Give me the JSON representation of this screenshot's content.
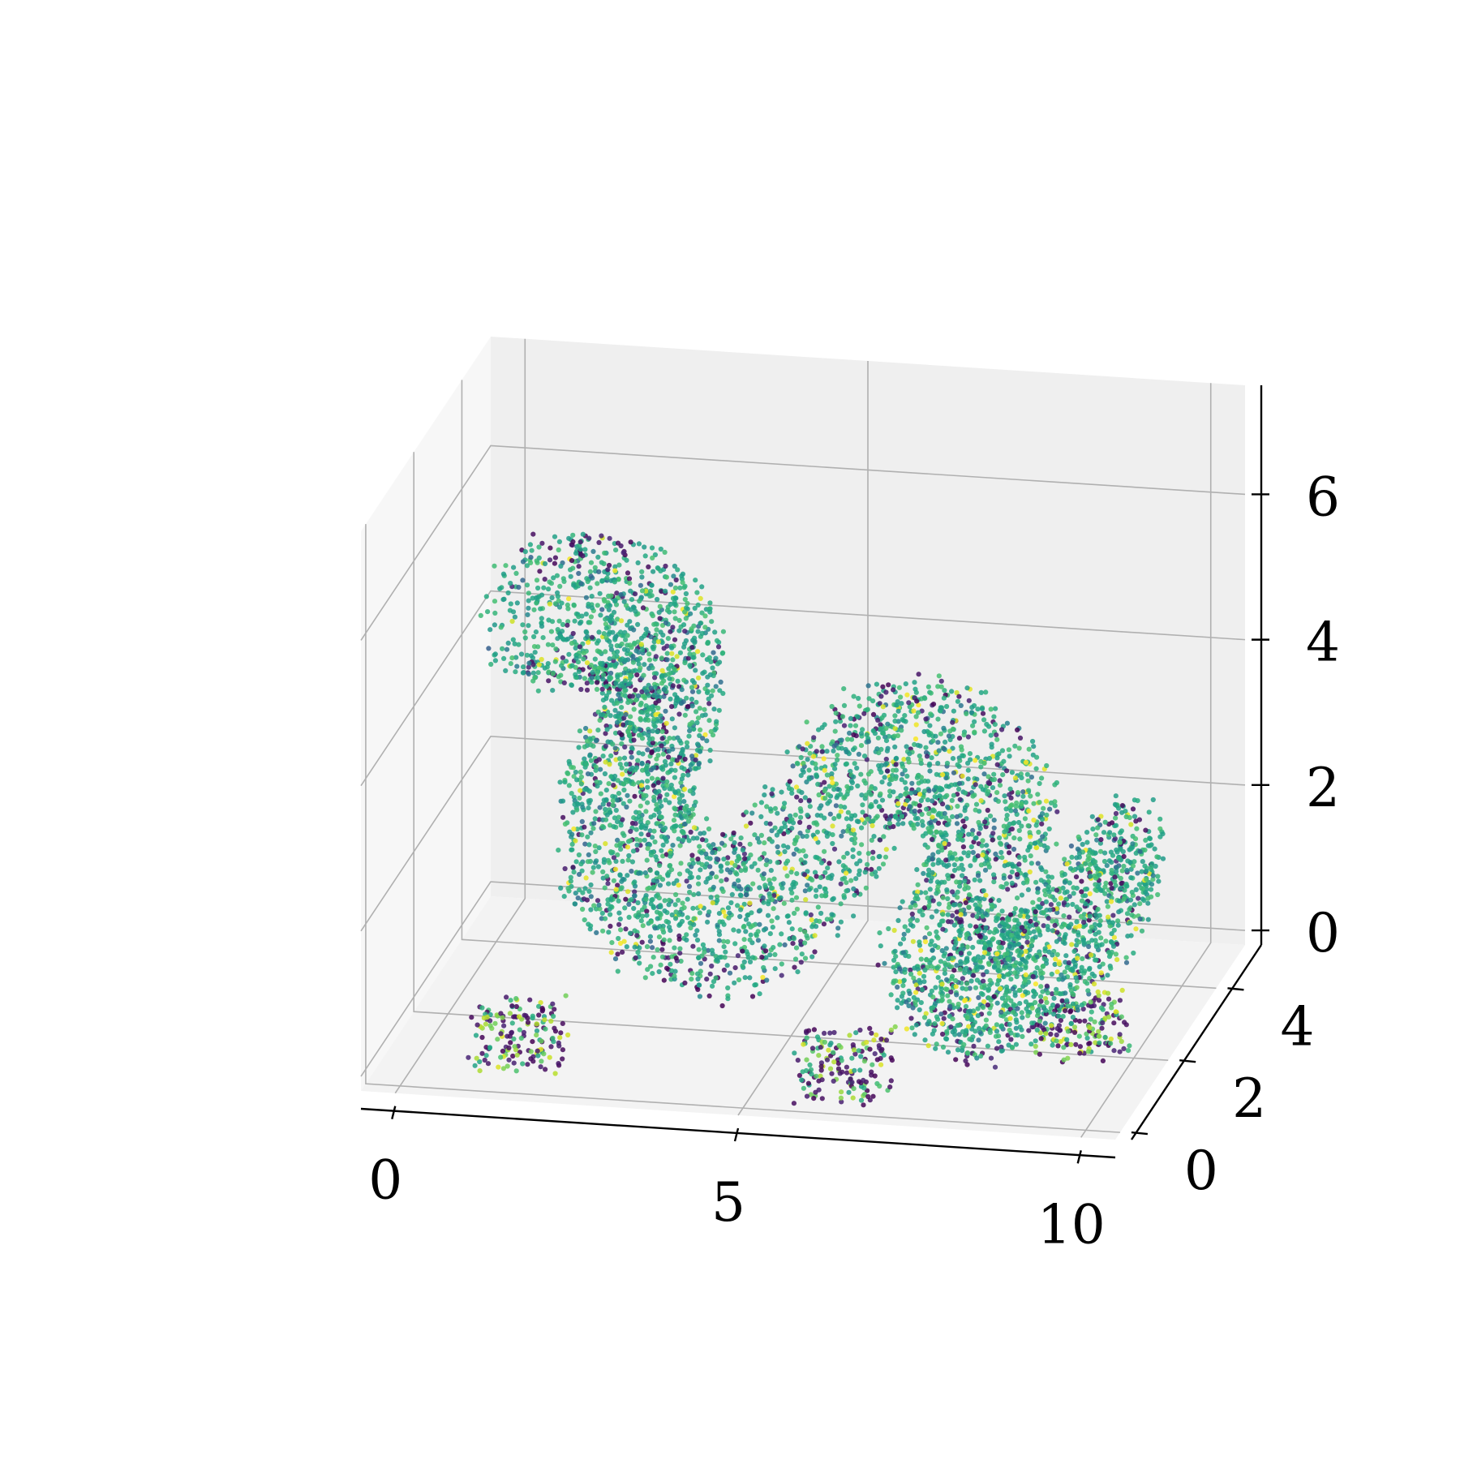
{
  "chart_data": {
    "type": "scatter",
    "subtype": "3d point cloud",
    "title": "",
    "xlabel": "",
    "ylabel": "",
    "zlabel": "",
    "grid": true,
    "colormap": "viridis",
    "axes": {
      "x": {
        "range": [
          -0.5,
          10.5
        ],
        "ticks": [
          0,
          5,
          10
        ],
        "tick_labels": [
          "0",
          "5",
          "10"
        ]
      },
      "y": {
        "range": [
          -0.2,
          5.2
        ],
        "ticks": [
          0,
          2,
          4
        ],
        "tick_labels": [
          "0",
          "2",
          "4"
        ]
      },
      "z": {
        "range": [
          -0.2,
          7.5
        ],
        "ticks": [
          0,
          2,
          4,
          6
        ],
        "tick_labels": [
          "0",
          "2",
          "4",
          "6"
        ]
      }
    },
    "pane_colors": {
      "back": "#efefef",
      "side": "#f7f7f7",
      "floor": "#f3f3f3"
    },
    "colors": {
      "viridis_low": "#440154",
      "viridis_mid_low": "#31688e",
      "viridis_mid": "#21918c",
      "viridis_mid_high": "#5ec962",
      "viridis_high": "#fde725"
    }
  }
}
